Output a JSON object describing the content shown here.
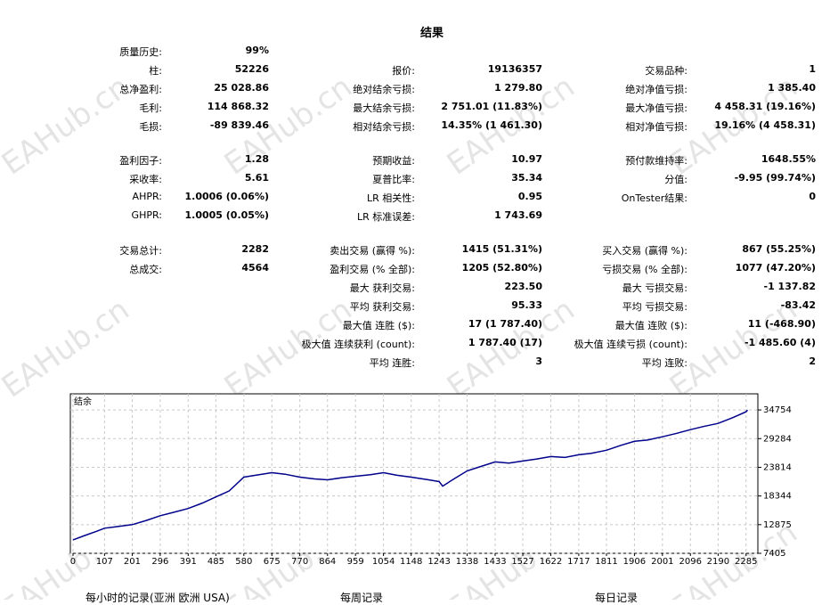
{
  "title": "结果",
  "watermark": "EAHub.cn",
  "rows": [
    [
      [
        "质量历史:",
        "99%"
      ],
      null,
      null
    ],
    [
      [
        "柱:",
        "52226"
      ],
      [
        "报价:",
        "19136357"
      ],
      [
        "交易品种:",
        "1"
      ]
    ],
    [
      [
        "总净盈利:",
        "25 028.86"
      ],
      [
        "绝对结余亏损:",
        "1 279.80"
      ],
      [
        "绝对净值亏损:",
        "1 385.40"
      ]
    ],
    [
      [
        "毛利:",
        "114 868.32"
      ],
      [
        "最大结余亏损:",
        "2 751.01 (11.83%)"
      ],
      [
        "最大净值亏损:",
        "4 458.31 (19.16%)"
      ]
    ],
    [
      [
        "毛损:",
        "-89 839.46"
      ],
      [
        "相对结余亏损:",
        "14.35% (1 461.30)"
      ],
      [
        "相对净值亏损:",
        "19.16% (4 458.31)"
      ]
    ],
    [
      [
        "盈利因子:",
        "1.28"
      ],
      [
        "预期收益:",
        "10.97"
      ],
      [
        "预付款维持率:",
        "1648.55%"
      ]
    ],
    [
      [
        "采收率:",
        "5.61"
      ],
      [
        "夏普比率:",
        "35.34"
      ],
      [
        "分值:",
        "-9.95 (99.74%)"
      ]
    ],
    [
      [
        "AHPR:",
        "1.0006 (0.06%)"
      ],
      [
        "LR 相关性:",
        "0.95"
      ],
      [
        "OnTester结果:",
        "0"
      ]
    ],
    [
      [
        "GHPR:",
        "1.0005 (0.05%)"
      ],
      [
        "LR 标准误差:",
        "1 743.69"
      ],
      null
    ],
    [
      [
        "交易总计:",
        "2282"
      ],
      [
        "卖出交易 (赢得 %):",
        "1415 (51.31%)"
      ],
      [
        "买入交易 (赢得 %):",
        "867 (55.25%)"
      ]
    ],
    [
      [
        "总成交:",
        "4564"
      ],
      [
        "盈利交易 (% 全部):",
        "1205 (52.80%)"
      ],
      [
        "亏损交易 (% 全部):",
        "1077 (47.20%)"
      ]
    ],
    [
      null,
      [
        "最大 获利交易:",
        "223.50"
      ],
      [
        "最大 亏损交易:",
        "-1 137.82"
      ]
    ],
    [
      null,
      [
        "平均 获利交易:",
        "95.33"
      ],
      [
        "平均 亏损交易:",
        "-83.42"
      ]
    ],
    [
      null,
      [
        "最大值 连胜 ($):",
        "17 (1 787.40)"
      ],
      [
        "最大值 连败 ($):",
        "11 (-468.90)"
      ]
    ],
    [
      null,
      [
        "极大值 连续获利 (count):",
        "1 787.40 (17)"
      ],
      [
        "极大值 连续亏损 (count):",
        "-1 485.60 (4)"
      ]
    ],
    [
      null,
      [
        "平均 连胜:",
        "3"
      ],
      [
        "平均 连败:",
        "2"
      ]
    ]
  ],
  "footer": [
    "每小时的记录(亚洲 欧洲 USA)",
    "每周记录",
    "每日记录"
  ],
  "chart_data": {
    "type": "line",
    "x": [
      0,
      40,
      80,
      107,
      150,
      201,
      250,
      296,
      340,
      391,
      440,
      485,
      530,
      580,
      620,
      675,
      720,
      770,
      820,
      864,
      910,
      959,
      1010,
      1054,
      1100,
      1148,
      1200,
      1243,
      1255,
      1290,
      1338,
      1380,
      1433,
      1480,
      1527,
      1575,
      1622,
      1670,
      1717,
      1760,
      1811,
      1860,
      1906,
      1950,
      2001,
      2050,
      2096,
      2140,
      2190,
      2240,
      2285,
      2290
    ],
    "series": [
      {
        "name": "结余",
        "color": "#00008b",
        "values": [
          9970,
          10800,
          11600,
          12190,
          12500,
          12875,
          13700,
          14585,
          15200,
          15950,
          17000,
          18170,
          19300,
          21935,
          22300,
          22790,
          22500,
          21935,
          21600,
          21420,
          21800,
          22100,
          22400,
          22790,
          22300,
          21935,
          21500,
          21080,
          20225,
          21500,
          23130,
          23900,
          24840,
          24600,
          25010,
          25400,
          25870,
          25700,
          26210,
          26500,
          27065,
          28000,
          28775,
          29000,
          29630,
          30300,
          31000,
          31600,
          32190,
          33300,
          34415,
          34754
        ]
      }
    ],
    "xlim": [
      -9,
      2325
    ],
    "ylim": [
      7405,
      37830
    ],
    "xticks": [
      0,
      107,
      201,
      296,
      391,
      485,
      580,
      675,
      770,
      864,
      959,
      1054,
      1148,
      1243,
      1338,
      1433,
      1527,
      1622,
      1717,
      1811,
      1906,
      2001,
      2096,
      2190,
      2285
    ],
    "yticks": [
      7405,
      12875,
      18344,
      23814,
      29284,
      34754
    ],
    "grid": true
  }
}
